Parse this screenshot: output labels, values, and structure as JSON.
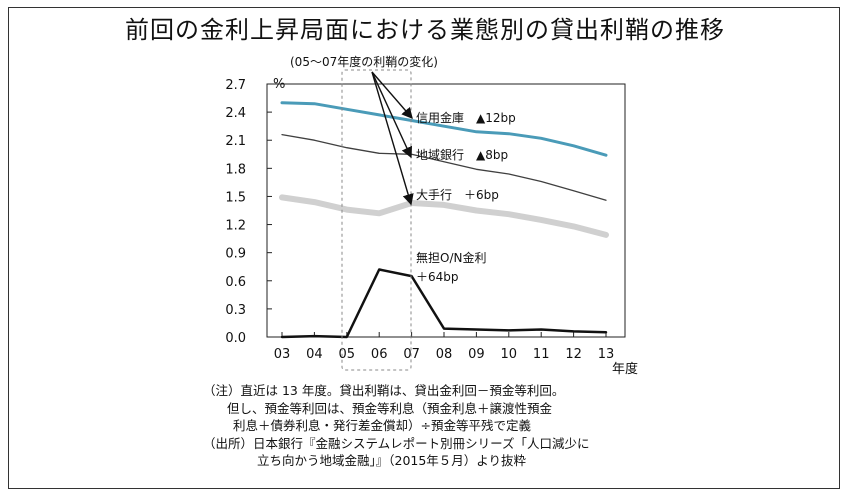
{
  "chart_data": {
    "type": "line",
    "title": "前回の金利上昇局面における業態別の貸出利鞘の推移",
    "ylabel": "%",
    "xlabel": "年度",
    "x": [
      "03",
      "04",
      "05",
      "06",
      "07",
      "08",
      "09",
      "10",
      "11",
      "12",
      "13"
    ],
    "y_ticks": [
      "0.0",
      "0.3",
      "0.6",
      "0.9",
      "1.2",
      "1.5",
      "1.8",
      "2.1",
      "2.4",
      "2.7"
    ],
    "ylim": [
      0,
      2.7
    ],
    "grid": false,
    "series": [
      {
        "name": "信用金庫",
        "color": "#4a9bb8",
        "values": [
          2.5,
          2.49,
          2.43,
          2.37,
          2.31,
          2.25,
          2.19,
          2.17,
          2.12,
          2.04,
          1.94
        ]
      },
      {
        "name": "地域銀行",
        "color": "#404040",
        "values": [
          2.16,
          2.1,
          2.02,
          1.96,
          1.95,
          1.87,
          1.79,
          1.74,
          1.66,
          1.56,
          1.46
        ]
      },
      {
        "name": "大手行",
        "color": "#d0d0d0",
        "values": [
          1.49,
          1.44,
          1.36,
          1.32,
          1.43,
          1.41,
          1.35,
          1.31,
          1.25,
          1.18,
          1.09
        ]
      },
      {
        "name": "無担O/N金利",
        "color": "#111111",
        "values": [
          0.0,
          0.01,
          0.0,
          0.72,
          0.65,
          0.09,
          0.08,
          0.07,
          0.08,
          0.06,
          0.05
        ]
      }
    ],
    "annotations": {
      "range_label": "(05～07年度の利鞘の変化)",
      "shinkin": "信用金庫　▲12bp",
      "chiiki": "地域銀行　▲8bp",
      "ote": "大手行　＋6bp",
      "on_line1": "無担O/N金利",
      "on_line2": "＋64bp"
    }
  },
  "notes": {
    "line1": "（注）直近は 13 年度。貸出利鞘は、貸出金利回－預金等利回。",
    "line2": "但し、預金等利回は、預金等利息（預金利息＋譲渡性預金",
    "line3": "利息＋債券利息・発行差金償却）÷預金等平残で定義",
    "line4": "（出所）日本銀行『金融システムレポート別冊シリーズ「人口減少に",
    "line5": "立ち向かう地域金融」』（2015年５月）より抜粋"
  }
}
